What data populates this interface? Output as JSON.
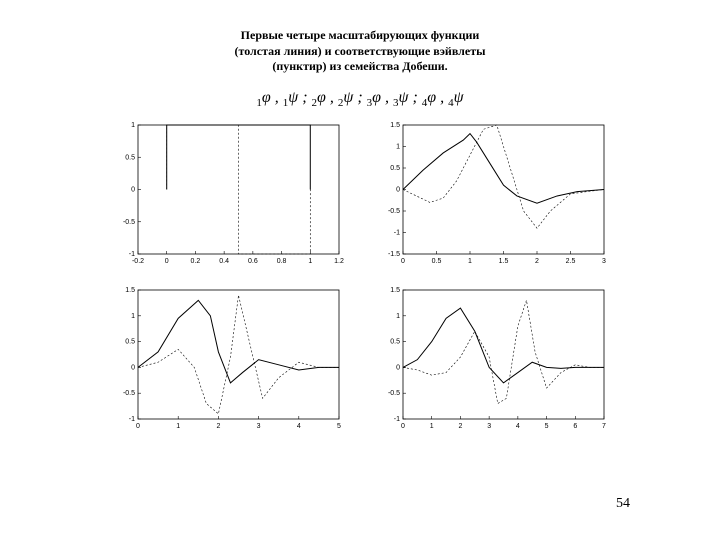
{
  "title_lines": [
    "Первые четыре масштабирующих функции",
    "(толстая линия) и соответствующие вэйвлеты",
    "(пунктир) из семейства Добеши."
  ],
  "formula_parts": [
    {
      "sub": "1",
      "sym": "φ"
    },
    {
      "sep": ","
    },
    {
      "sub": "1",
      "sym": "ψ"
    },
    {
      "sep": ";"
    },
    {
      "sub": "2",
      "sym": "φ"
    },
    {
      "sep": ","
    },
    {
      "sub": "2",
      "sym": "ψ"
    },
    {
      "sep": ";"
    },
    {
      "sub": "3",
      "sym": "φ"
    },
    {
      "sep": ","
    },
    {
      "sub": "3",
      "sym": "ψ"
    },
    {
      "sep": ";"
    },
    {
      "sub": "4",
      "sym": "φ"
    },
    {
      "sep": ","
    },
    {
      "sub": "4",
      "sym": "ψ"
    }
  ],
  "page_number": "54",
  "style": {
    "axis_color": "#000000",
    "solid_color": "#000000",
    "dash_color": "#000000",
    "solid_width": 1.0,
    "dash_width": 0.6,
    "dash_pattern": "2 2",
    "tick_font_size": 7
  },
  "panels": [
    {
      "name": "db1",
      "xlim": [
        -0.2,
        1.2
      ],
      "ylim": [
        -1.0,
        1.0
      ],
      "xticks": [
        -0.2,
        0,
        0.2,
        0.4,
        0.6,
        0.8,
        1,
        1.2
      ],
      "xtick_labels": [
        "-0.2",
        "0",
        "0.2",
        "0.4",
        "0.6",
        "0.8",
        "1",
        "1.2"
      ],
      "yticks": [
        -1,
        -0.5,
        0,
        0.5,
        1
      ],
      "ytick_labels": [
        "-1",
        "-0.5",
        "0",
        "0.5",
        "1"
      ],
      "solid": [
        [
          0,
          0
        ],
        [
          0,
          1
        ],
        [
          1,
          1
        ],
        [
          1,
          0
        ]
      ],
      "dashed": [
        [
          0,
          0
        ],
        [
          0,
          1
        ],
        [
          0.5,
          1
        ],
        [
          0.5,
          -1
        ],
        [
          1,
          -1
        ],
        [
          1,
          0
        ]
      ]
    },
    {
      "name": "db2",
      "xlim": [
        0,
        3
      ],
      "ylim": [
        -1.5,
        1.5
      ],
      "xticks": [
        0,
        0.5,
        1,
        1.5,
        2,
        2.5,
        3
      ],
      "xtick_labels": [
        "0",
        "0.5",
        "1",
        "1.5",
        "2",
        "2.5",
        "3"
      ],
      "yticks": [
        -1.5,
        -1,
        -0.5,
        0,
        0.5,
        1,
        1.5
      ],
      "ytick_labels": [
        "-1.5",
        "-1",
        "-0.5",
        "0",
        "0.5",
        "1",
        "1.5"
      ],
      "solid": [
        [
          0,
          0
        ],
        [
          0.3,
          0.45
        ],
        [
          0.6,
          0.85
        ],
        [
          0.9,
          1.15
        ],
        [
          1.0,
          1.3
        ],
        [
          1.1,
          1.1
        ],
        [
          1.3,
          0.6
        ],
        [
          1.5,
          0.1
        ],
        [
          1.7,
          -0.15
        ],
        [
          2.0,
          -0.32
        ],
        [
          2.3,
          -0.15
        ],
        [
          2.6,
          -0.05
        ],
        [
          3.0,
          0
        ]
      ],
      "dashed": [
        [
          0,
          0
        ],
        [
          0.2,
          -0.15
        ],
        [
          0.4,
          -0.3
        ],
        [
          0.6,
          -0.2
        ],
        [
          0.8,
          0.2
        ],
        [
          1.0,
          0.8
        ],
        [
          1.2,
          1.4
        ],
        [
          1.4,
          1.5
        ],
        [
          1.6,
          0.5
        ],
        [
          1.8,
          -0.5
        ],
        [
          2.0,
          -0.9
        ],
        [
          2.2,
          -0.5
        ],
        [
          2.5,
          -0.1
        ],
        [
          3.0,
          0
        ]
      ]
    },
    {
      "name": "db3",
      "xlim": [
        0,
        5
      ],
      "ylim": [
        -1.0,
        1.5
      ],
      "xticks": [
        0,
        1,
        2,
        3,
        4,
        5
      ],
      "xtick_labels": [
        "0",
        "1",
        "2",
        "3",
        "4",
        "5"
      ],
      "yticks": [
        -1,
        -0.5,
        0,
        0.5,
        1,
        1.5
      ],
      "ytick_labels": [
        "-1",
        "-0.5",
        "0",
        "0.5",
        "1",
        "1.5"
      ],
      "solid": [
        [
          0,
          0
        ],
        [
          0.5,
          0.3
        ],
        [
          1.0,
          0.95
        ],
        [
          1.5,
          1.3
        ],
        [
          1.8,
          1.0
        ],
        [
          2.0,
          0.3
        ],
        [
          2.3,
          -0.3
        ],
        [
          2.6,
          -0.1
        ],
        [
          3.0,
          0.15
        ],
        [
          3.5,
          0.05
        ],
        [
          4.0,
          -0.05
        ],
        [
          4.5,
          0
        ],
        [
          5.0,
          0
        ]
      ],
      "dashed": [
        [
          0,
          0
        ],
        [
          0.5,
          0.1
        ],
        [
          1.0,
          0.35
        ],
        [
          1.4,
          0.0
        ],
        [
          1.7,
          -0.7
        ],
        [
          2.0,
          -0.9
        ],
        [
          2.3,
          0.2
        ],
        [
          2.5,
          1.4
        ],
        [
          2.8,
          0.4
        ],
        [
          3.1,
          -0.6
        ],
        [
          3.5,
          -0.2
        ],
        [
          4.0,
          0.1
        ],
        [
          4.5,
          0
        ],
        [
          5.0,
          0
        ]
      ]
    },
    {
      "name": "db4",
      "xlim": [
        0,
        7
      ],
      "ylim": [
        -1.0,
        1.5
      ],
      "xticks": [
        0,
        1,
        2,
        3,
        4,
        5,
        6,
        7
      ],
      "xtick_labels": [
        "0",
        "1",
        "2",
        "3",
        "4",
        "5",
        "6",
        "7"
      ],
      "yticks": [
        -1,
        -0.5,
        0,
        0.5,
        1,
        1.5
      ],
      "ytick_labels": [
        "-1",
        "-0.5",
        "0",
        "0.5",
        "1",
        "1.5"
      ],
      "solid": [
        [
          0,
          0
        ],
        [
          0.5,
          0.15
        ],
        [
          1.0,
          0.5
        ],
        [
          1.5,
          0.95
        ],
        [
          2.0,
          1.15
        ],
        [
          2.5,
          0.7
        ],
        [
          3.0,
          0.0
        ],
        [
          3.5,
          -0.3
        ],
        [
          4.0,
          -0.1
        ],
        [
          4.5,
          0.1
        ],
        [
          5.0,
          0.0
        ],
        [
          5.5,
          -0.02
        ],
        [
          6.0,
          0
        ],
        [
          7.0,
          0
        ]
      ],
      "dashed": [
        [
          0,
          0
        ],
        [
          0.5,
          -0.05
        ],
        [
          1.0,
          -0.15
        ],
        [
          1.5,
          -0.1
        ],
        [
          2.0,
          0.2
        ],
        [
          2.5,
          0.7
        ],
        [
          3.0,
          0.2
        ],
        [
          3.3,
          -0.7
        ],
        [
          3.6,
          -0.6
        ],
        [
          4.0,
          0.8
        ],
        [
          4.3,
          1.3
        ],
        [
          4.6,
          0.3
        ],
        [
          5.0,
          -0.4
        ],
        [
          5.5,
          -0.1
        ],
        [
          6.0,
          0.05
        ],
        [
          6.5,
          0
        ],
        [
          7.0,
          0
        ]
      ]
    }
  ]
}
